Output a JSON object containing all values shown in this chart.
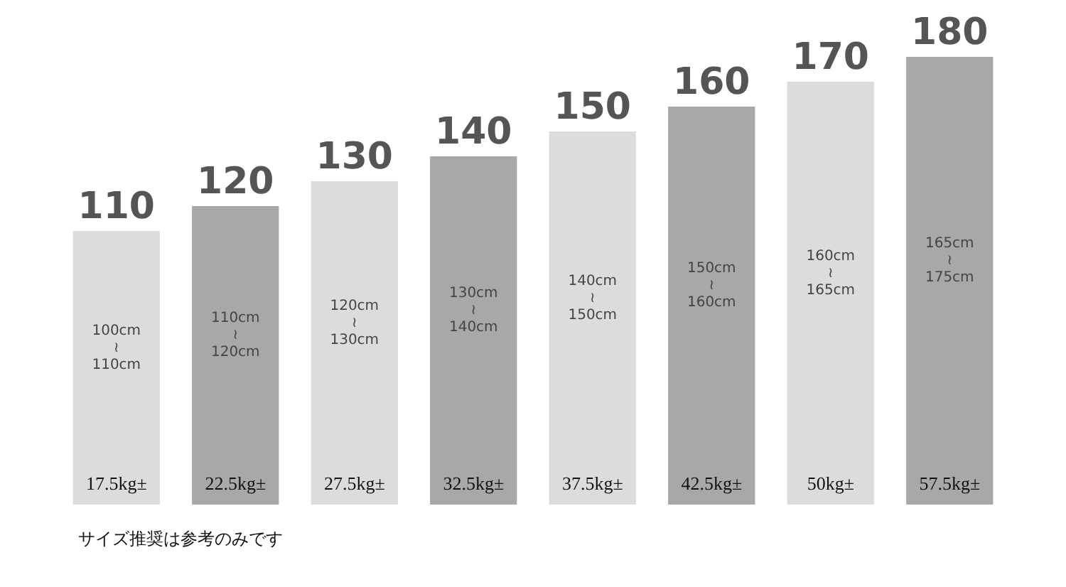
{
  "chart_data": {
    "type": "bar",
    "categories": [
      "100cm\n≀\n110cm",
      "110cm\n≀\n120cm",
      "120cm\n≀\n130cm",
      "130cm\n≀\n140cm",
      "140cm\n≀\n150cm",
      "150cm\n≀\n160cm",
      "160cm\n≀\n165cm",
      "165cm\n≀\n175cm"
    ],
    "values": [
      110,
      120,
      130,
      140,
      150,
      160,
      170,
      180
    ],
    "colors": [
      "#dedbde",
      "#a9a7a9",
      "#dedbde",
      "#a9a7a9",
      "#dedbde",
      "#a9a7a9",
      "#dedbde",
      "#a9a7a9"
    ],
    "data_labels": true,
    "annotations": [
      "17.5kg±",
      "22.5kg±",
      "27.5kg±",
      "32.5kg±",
      "37.5kg±",
      "42.5kg±",
      "50kg±",
      "57.5kg±",
      "サイズ推奨は参考のみです"
    ]
  }
}
